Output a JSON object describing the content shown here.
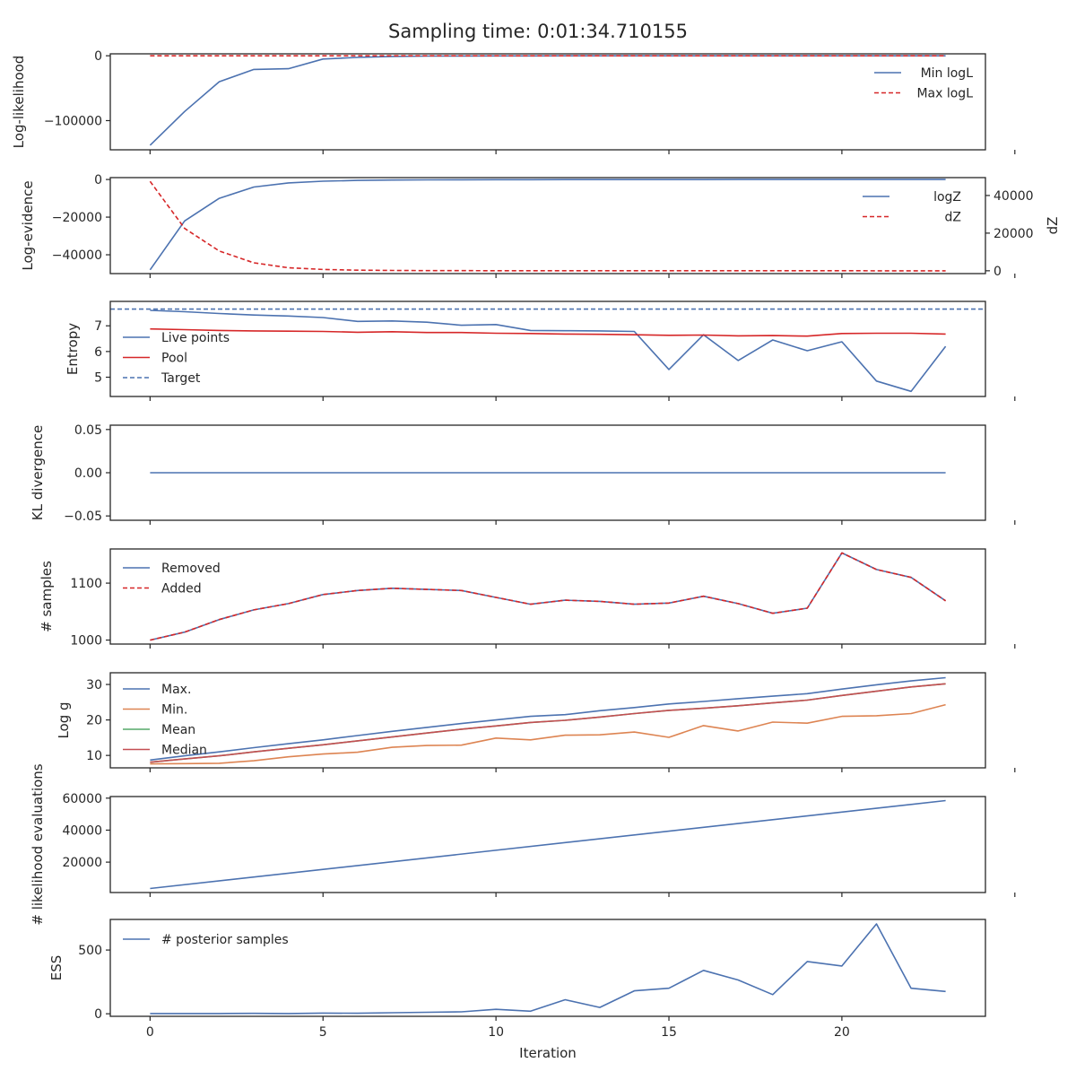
{
  "figure": {
    "title": "Sampling time: 0:01:34.710155"
  },
  "colors": {
    "blue": "#4c72b0",
    "red": "#d62728",
    "orange": "#dd8452",
    "green": "#55a868",
    "brown": "#c44e52",
    "axis": "#262626"
  },
  "chart_data": [
    {
      "type": "line",
      "ylabel": "Log-likelihood",
      "ylim": [
        -145000,
        3000
      ],
      "yticks": [
        0,
        -100000
      ],
      "xlim": [
        -1.15,
        24.15
      ],
      "xticks": [
        0,
        5,
        10,
        15,
        20,
        25
      ],
      "legend": "top-right",
      "series": [
        {
          "name": "Min logL",
          "color": "#4c72b0",
          "dash": false,
          "x": [
            0,
            1,
            2,
            3,
            4,
            5,
            6,
            7,
            8,
            9,
            10,
            11,
            12,
            13,
            14,
            15,
            16,
            17,
            18,
            19,
            20,
            21,
            22,
            23
          ],
          "y": [
            -138000,
            -86000,
            -40000,
            -21000,
            -20000,
            -5000,
            -2500,
            -1000,
            -500,
            -300,
            -200,
            -150,
            -100,
            -80,
            -60,
            -50,
            -40,
            -30,
            -25,
            -20,
            -15,
            -12,
            -10,
            -8
          ]
        },
        {
          "name": "Max logL",
          "color": "#d62728",
          "dash": true,
          "x": [
            0,
            23
          ],
          "y": [
            0,
            0
          ]
        }
      ]
    },
    {
      "type": "line",
      "ylabel": "Log-evidence",
      "ylabel_right": "dZ",
      "ylim": [
        -50000,
        1000
      ],
      "yticks": [
        0,
        -20000,
        -40000
      ],
      "ylim_right": [
        -1500,
        49500
      ],
      "yticks_right": [
        0,
        20000,
        40000
      ],
      "xlim": [
        -1.15,
        24.15
      ],
      "xticks": [
        0,
        5,
        10,
        15,
        20,
        25
      ],
      "legend": "top-right",
      "series": [
        {
          "name": "logZ",
          "color": "#4c72b0",
          "dash": false,
          "axis": "left",
          "x": [
            0,
            1,
            2,
            3,
            4,
            5,
            6,
            7,
            8,
            9,
            10,
            11,
            12,
            13,
            14,
            15,
            16,
            17,
            18,
            19,
            20,
            21,
            22,
            23
          ],
          "y": [
            -48000,
            -22000,
            -10000,
            -4000,
            -1800,
            -900,
            -500,
            -300,
            -200,
            -150,
            -100,
            -80,
            -60,
            -50,
            -40,
            -30,
            -25,
            -20,
            -15,
            -12,
            -10,
            -8,
            -6,
            -5
          ]
        },
        {
          "name": "dZ",
          "color": "#d62728",
          "dash": true,
          "axis": "right",
          "x": [
            0,
            1,
            2,
            3,
            4,
            5,
            6,
            7,
            8,
            9,
            10,
            11,
            12,
            13,
            14,
            15,
            16,
            17,
            18,
            19,
            20,
            21,
            22,
            23
          ],
          "y": [
            47500,
            22500,
            10500,
            4200,
            1600,
            700,
            300,
            150,
            80,
            50,
            30,
            20,
            15,
            10,
            8,
            6,
            5,
            4,
            3,
            2,
            2,
            1,
            1,
            1
          ]
        }
      ]
    },
    {
      "type": "line",
      "ylabel": "Entropy",
      "ylim": [
        4.25,
        7.95
      ],
      "yticks": [
        7,
        6,
        5
      ],
      "xlim": [
        -1.15,
        24.15
      ],
      "xticks": [
        0,
        5,
        10,
        15,
        20,
        25
      ],
      "legend": "center-left",
      "series": [
        {
          "name": "Live points",
          "color": "#4c72b0",
          "dash": false,
          "x": [
            0,
            1,
            2,
            3,
            4,
            5,
            6,
            7,
            8,
            9,
            10,
            11,
            12,
            13,
            14,
            15,
            16,
            17,
            18,
            19,
            20,
            21,
            22,
            23
          ],
          "y": [
            7.6,
            7.55,
            7.48,
            7.42,
            7.38,
            7.32,
            7.17,
            7.19,
            7.14,
            7.02,
            7.05,
            6.82,
            6.81,
            6.8,
            6.78,
            5.3,
            6.65,
            5.65,
            6.45,
            6.03,
            6.38,
            4.85,
            4.45,
            6.2
          ]
        },
        {
          "name": "Pool",
          "color": "#d62728",
          "dash": false,
          "x": [
            0,
            1,
            2,
            3,
            4,
            5,
            6,
            7,
            8,
            9,
            10,
            11,
            12,
            13,
            14,
            15,
            16,
            17,
            18,
            19,
            20,
            21,
            22,
            23
          ],
          "y": [
            6.88,
            6.85,
            6.82,
            6.8,
            6.79,
            6.78,
            6.75,
            6.77,
            6.74,
            6.74,
            6.71,
            6.7,
            6.68,
            6.67,
            6.65,
            6.63,
            6.64,
            6.61,
            6.62,
            6.6,
            6.7,
            6.71,
            6.71,
            6.68
          ]
        },
        {
          "name": "Target",
          "color": "#4c72b0",
          "dash": true,
          "x": [
            -1.15,
            24.15
          ],
          "y": [
            7.65,
            7.65
          ]
        }
      ]
    },
    {
      "type": "line",
      "ylabel": "KL divergence",
      "ylim": [
        -0.055,
        0.055
      ],
      "yticks": [
        0.05,
        0.0,
        -0.05
      ],
      "ytick_labels": [
        "0.05",
        "0.00",
        "−0.05"
      ],
      "xlim": [
        -1.15,
        24.15
      ],
      "xticks": [
        0,
        5,
        10,
        15,
        20,
        25
      ],
      "legend": "none",
      "series": [
        {
          "color": "#4c72b0",
          "dash": false,
          "x": [
            0,
            23
          ],
          "y": [
            0,
            0
          ]
        }
      ]
    },
    {
      "type": "line",
      "ylabel": "# samples",
      "ylim": [
        993,
        1160
      ],
      "yticks": [
        1100,
        1000
      ],
      "xlim": [
        -1.15,
        24.15
      ],
      "xticks": [
        0,
        5,
        10,
        15,
        20,
        25
      ],
      "legend": "top-left",
      "series": [
        {
          "name": "Removed",
          "color": "#4c72b0",
          "dash": false,
          "x": [
            0,
            1,
            2,
            3,
            4,
            5,
            6,
            7,
            8,
            9,
            10,
            11,
            12,
            13,
            14,
            15,
            16,
            17,
            18,
            19,
            20,
            21,
            22,
            23
          ],
          "y": [
            1000,
            1014,
            1036,
            1053,
            1064,
            1080,
            1087,
            1091,
            1089,
            1087,
            1075,
            1063,
            1070,
            1068,
            1063,
            1065,
            1077,
            1064,
            1047,
            1056,
            1153,
            1124,
            1110,
            1069
          ]
        },
        {
          "name": "Added",
          "color": "#d62728",
          "dash": true,
          "x": [
            0,
            1,
            2,
            3,
            4,
            5,
            6,
            7,
            8,
            9,
            10,
            11,
            12,
            13,
            14,
            15,
            16,
            17,
            18,
            19,
            20,
            21,
            22,
            23
          ],
          "y": [
            1000,
            1014,
            1036,
            1053,
            1064,
            1080,
            1087,
            1091,
            1089,
            1087,
            1075,
            1063,
            1070,
            1068,
            1063,
            1065,
            1077,
            1064,
            1047,
            1056,
            1153,
            1124,
            1110,
            1069
          ]
        }
      ]
    },
    {
      "type": "line",
      "ylabel": "Log g",
      "ylim": [
        6.5,
        33.3
      ],
      "yticks": [
        30,
        20,
        10
      ],
      "xlim": [
        -1.15,
        24.15
      ],
      "xticks": [
        0,
        5,
        10,
        15,
        20,
        25
      ],
      "legend": "top-left",
      "series": [
        {
          "name": "Max.",
          "color": "#4c72b0",
          "dash": false,
          "x": [
            0,
            1,
            2,
            3,
            4,
            5,
            6,
            7,
            8,
            9,
            10,
            11,
            12,
            13,
            14,
            15,
            16,
            17,
            18,
            19,
            20,
            21,
            22,
            23
          ],
          "y": [
            8.7,
            9.9,
            11.0,
            12.2,
            13.3,
            14.4,
            15.6,
            16.8,
            17.9,
            19.0,
            20.0,
            21.0,
            21.5,
            22.6,
            23.5,
            24.5,
            25.2,
            26.0,
            26.7,
            27.4,
            28.7,
            29.9,
            31.0,
            31.9
          ]
        },
        {
          "name": "Min.",
          "color": "#dd8452",
          "dash": false,
          "x": [
            0,
            1,
            2,
            3,
            4,
            5,
            6,
            7,
            8,
            9,
            10,
            11,
            12,
            13,
            14,
            15,
            16,
            17,
            18,
            19,
            20,
            21,
            22,
            23
          ],
          "y": [
            7.6,
            7.7,
            7.8,
            8.5,
            9.6,
            10.4,
            10.9,
            12.3,
            12.8,
            12.9,
            14.9,
            14.4,
            15.7,
            15.8,
            16.6,
            15.1,
            18.4,
            16.9,
            19.4,
            19.1,
            21.0,
            21.2,
            21.8,
            24.3
          ]
        },
        {
          "name": "Mean",
          "color": "#55a868",
          "dash": false,
          "x": [
            0,
            1,
            2,
            3,
            4,
            5,
            6,
            7,
            8,
            9,
            10,
            11,
            12,
            13,
            14,
            15,
            16,
            17,
            18,
            19,
            20,
            21,
            22,
            23
          ],
          "y": [
            8.1,
            9.0,
            9.9,
            11.0,
            12.0,
            13.0,
            14.1,
            15.2,
            16.3,
            17.4,
            18.3,
            19.3,
            19.9,
            20.8,
            21.8,
            22.7,
            23.3,
            24.0,
            24.8,
            25.6,
            26.9,
            28.1,
            29.3,
            30.2
          ]
        },
        {
          "name": "Median",
          "color": "#c44e52",
          "dash": false,
          "x": [
            0,
            1,
            2,
            3,
            4,
            5,
            6,
            7,
            8,
            9,
            10,
            11,
            12,
            13,
            14,
            15,
            16,
            17,
            18,
            19,
            20,
            21,
            22,
            23
          ],
          "y": [
            8.1,
            9.0,
            9.9,
            11.0,
            12.0,
            13.0,
            14.1,
            15.2,
            16.3,
            17.4,
            18.3,
            19.3,
            19.9,
            20.8,
            21.8,
            22.7,
            23.3,
            24.0,
            24.8,
            25.6,
            26.9,
            28.1,
            29.3,
            30.2
          ]
        }
      ]
    },
    {
      "type": "line",
      "ylabel": "# likelihood evaluations",
      "ylim": [
        1000,
        61000
      ],
      "yticks": [
        60000,
        40000,
        20000
      ],
      "xlim": [
        -1.15,
        24.15
      ],
      "xticks": [
        0,
        5,
        10,
        15,
        20,
        25
      ],
      "legend": "none",
      "series": [
        {
          "color": "#4c72b0",
          "dash": false,
          "x": [
            0,
            23
          ],
          "y": [
            3500,
            58500
          ]
        }
      ]
    },
    {
      "type": "line",
      "ylabel": "ESS",
      "xlabel": "Iteration",
      "ylim": [
        -20,
        740
      ],
      "yticks": [
        500,
        0
      ],
      "xlim": [
        -1.15,
        24.15
      ],
      "xticks": [
        0,
        5,
        10,
        15,
        20
      ],
      "xtick_labels": [
        "0",
        "5",
        "10",
        "15",
        "20"
      ],
      "legend": "top-left",
      "series": [
        {
          "name": "# posterior samples",
          "color": "#4c72b0",
          "dash": false,
          "x": [
            0,
            1,
            2,
            3,
            4,
            5,
            6,
            7,
            8,
            9,
            10,
            11,
            12,
            13,
            14,
            15,
            16,
            17,
            18,
            19,
            20,
            21,
            22,
            23
          ],
          "y": [
            2,
            2,
            2,
            3,
            2,
            5,
            4,
            8,
            12,
            15,
            35,
            20,
            110,
            50,
            180,
            200,
            340,
            265,
            150,
            410,
            375,
            705,
            200,
            175
          ]
        }
      ]
    }
  ]
}
